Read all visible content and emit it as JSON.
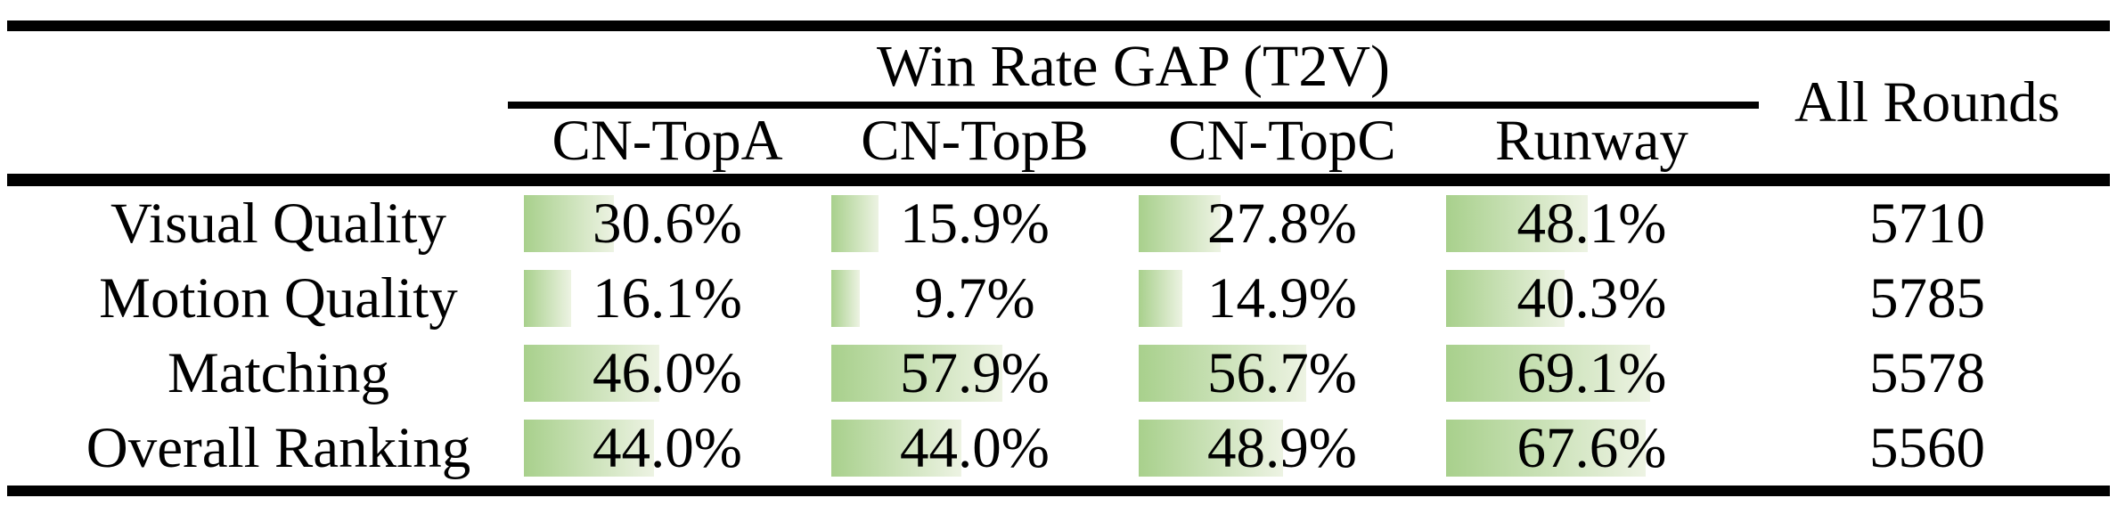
{
  "figure": {
    "title": "Win Rate GAP (T2V)",
    "all_rounds_header": "All Rounds",
    "columns": [
      {
        "label": "CN-TopA"
      },
      {
        "label": "CN-TopB"
      },
      {
        "label": "CN-TopC"
      },
      {
        "label": "Runway"
      }
    ],
    "rows": [
      {
        "label": "Visual Quality",
        "values": [
          30.6,
          15.9,
          27.8,
          48.1
        ],
        "display": [
          "30.6%",
          "15.9%",
          "27.8%",
          "48.1%"
        ],
        "all_rounds": "5710"
      },
      {
        "label": "Motion Quality",
        "values": [
          16.1,
          9.7,
          14.9,
          40.3
        ],
        "display": [
          "16.1%",
          "9.7%",
          "14.9%",
          "40.3%"
        ],
        "all_rounds": "5785"
      },
      {
        "label": "Matching",
        "values": [
          46.0,
          57.9,
          56.7,
          69.1
        ],
        "display": [
          "46.0%",
          "57.9%",
          "56.7%",
          "69.1%"
        ],
        "all_rounds": "5578"
      },
      {
        "label": "Overall Ranking",
        "values": [
          44.0,
          44.0,
          48.9,
          67.6
        ],
        "display": [
          "44.0%",
          "44.0%",
          "48.9%",
          "67.6%"
        ],
        "all_rounds": "5560"
      }
    ]
  },
  "colors": {
    "bar_gradient_start": "#a8d08c",
    "bar_gradient_end": "#edf3e3",
    "rule": "#000000"
  },
  "chart_data": {
    "type": "table",
    "title": "Win Rate GAP (T2V)",
    "categories": [
      "Visual Quality",
      "Motion Quality",
      "Matching",
      "Overall Ranking"
    ],
    "series": [
      {
        "name": "CN-TopA",
        "values": [
          30.6,
          16.1,
          46.0,
          44.0
        ]
      },
      {
        "name": "CN-TopB",
        "values": [
          15.9,
          9.7,
          57.9,
          44.0
        ]
      },
      {
        "name": "CN-TopC",
        "values": [
          27.8,
          14.9,
          56.7,
          48.9
        ]
      },
      {
        "name": "Runway",
        "values": [
          48.1,
          40.3,
          69.1,
          67.6
        ]
      }
    ],
    "extra_columns": [
      {
        "name": "All Rounds",
        "values": [
          5710,
          5785,
          5578,
          5560
        ]
      }
    ],
    "value_unit": "%",
    "bar_scale": [
      0,
      100
    ],
    "layout": "row labels left, gradient in-cell data bars, counts column right"
  }
}
